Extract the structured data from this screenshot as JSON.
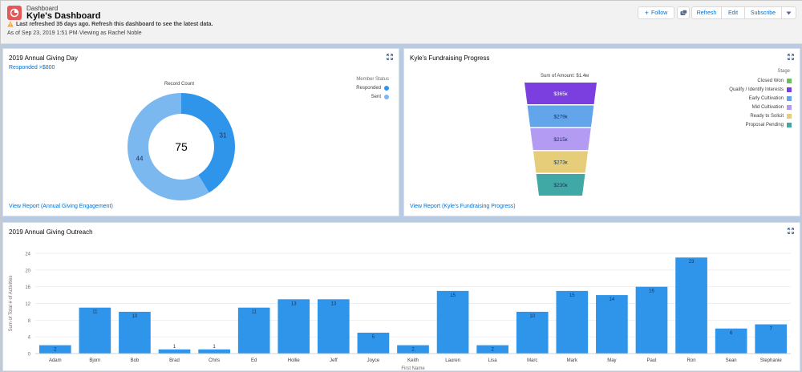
{
  "header": {
    "breadcrumb": "Dashboard",
    "title": "Kyle's Dashboard",
    "warning": "Last refreshed 35 days ago. Refresh this dashboard to see the latest data.",
    "as_of": "As of Sep 23, 2019 1:51 PM·Viewing as Rachel Noble",
    "buttons": {
      "follow": "Follow",
      "refresh": "Refresh",
      "edit": "Edit",
      "subscribe": "Subscribe"
    }
  },
  "colors": {
    "accent": "#0070d2",
    "bar": "#2e95ea",
    "donut_responded": "#2e95ea",
    "donut_sent": "#7cb8f0",
    "logo": "#e4585a"
  },
  "giving_day": {
    "title": "2019 Annual Giving Day",
    "subtitle": "Responded >$800",
    "chart_label": "Record Count",
    "total": "75",
    "legend_title": "Member Status",
    "legend": [
      {
        "label": "Responded",
        "color": "#2e95ea"
      },
      {
        "label": "Sent",
        "color": "#7cb8f0"
      }
    ],
    "view_report": "View Report (Annual Giving Engagement)"
  },
  "fundraising": {
    "title": "Kyle's Fundraising Progress",
    "chart_label": "Sum of Amount: $1.4м",
    "legend_title": "Stage",
    "legend": [
      {
        "label": "Closed Won",
        "color": "#6cbf5a"
      },
      {
        "label": "Qualify / Identify Interests",
        "color": "#7b3fe0"
      },
      {
        "label": "Early Cultivation",
        "color": "#62a5ea"
      },
      {
        "label": "Mid Cultivation",
        "color": "#b39af2"
      },
      {
        "label": "Ready to Solicit",
        "color": "#e5cd7a"
      },
      {
        "label": "Proposal Pending",
        "color": "#41a9a5"
      }
    ],
    "view_report": "View Report (Kyle's Fundraising Progress)"
  },
  "outreach": {
    "title": "2019 Annual Giving Outreach"
  },
  "chart_data": [
    {
      "type": "pie",
      "title": "2019 Annual Giving Day",
      "categories": [
        "Responded",
        "Sent"
      ],
      "values": [
        31,
        44
      ],
      "colors": [
        "#2e95ea",
        "#7cb8f0"
      ],
      "center_label": "75",
      "legend": "top-right"
    },
    {
      "type": "bar",
      "title": "Kyle's Fundraising Progress",
      "categories": [
        "Qualify / Identify Interests",
        "Early Cultivation",
        "Mid Cultivation",
        "Ready to Solicit",
        "Proposal Pending"
      ],
      "values": [
        365,
        279,
        215,
        273,
        230
      ],
      "labels": [
        "$365к",
        "$279к",
        "$215к",
        "$273к",
        "$230к"
      ],
      "colors": [
        "#7b3fe0",
        "#62a5ea",
        "#b39af2",
        "#e5cd7a",
        "#41a9a5"
      ],
      "legend": "top-right"
    },
    {
      "type": "bar",
      "title": "2019 Annual Giving Outreach",
      "xlabel": "First Name",
      "ylabel": "Sum of Total # of Activities",
      "ylim": [
        0,
        24
      ],
      "yticks": [
        0,
        4,
        8,
        12,
        16,
        20,
        24
      ],
      "categories": [
        "Adam",
        "Bjorn",
        "Bob",
        "Brad",
        "Chris",
        "Ed",
        "Hollie",
        "Jeff",
        "Joyce",
        "Keith",
        "Lauren",
        "Lisa",
        "Marc",
        "Mark",
        "May",
        "Paul",
        "Ron",
        "Sean",
        "Stephanie"
      ],
      "values": [
        2,
        11,
        10,
        1,
        1,
        11,
        13,
        13,
        5,
        2,
        15,
        2,
        10,
        15,
        14,
        16,
        23,
        6,
        7
      ],
      "grid": true
    }
  ]
}
